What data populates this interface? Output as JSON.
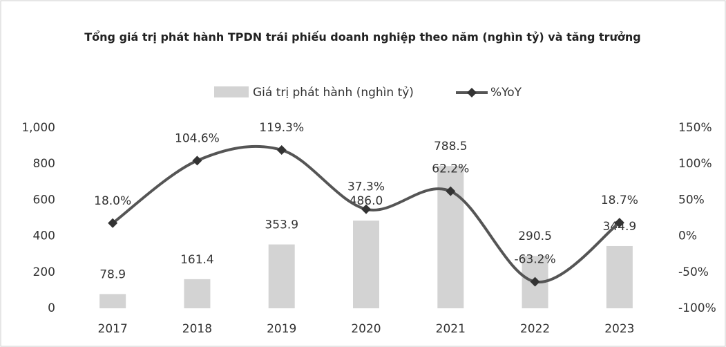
{
  "chart_data": {
    "type": "bar_line",
    "title": "Tổng giá trị phát hành TPDN trái phiếu doanh nghiệp theo năm (nghìn tỷ) và tăng trưởng",
    "categories": [
      "2017",
      "2018",
      "2019",
      "2020",
      "2021",
      "2022",
      "2023"
    ],
    "series": [
      {
        "name": "Giá trị phát hành (nghìn tỷ)",
        "color": "#d3d3d3",
        "type": "bar",
        "values": [
          78.9,
          161.4,
          353.9,
          486.0,
          788.5,
          290.5,
          344.9
        ],
        "value_labels": [
          "78.9",
          "161.4",
          "353.9",
          "486.0",
          "788.5",
          "290.5",
          "344.9"
        ]
      },
      {
        "name": "%YoY",
        "color": "#555555",
        "type": "line",
        "axis": "y2",
        "values": [
          18.0,
          104.6,
          119.3,
          37.3,
          62.2,
          -63.2,
          18.7
        ],
        "value_labels": [
          "18.0%",
          "104.6%",
          "119.3%",
          "37.3%",
          "62.2%",
          "-63.2%",
          "18.7%"
        ]
      }
    ],
    "ylim": [
      0,
      1000
    ],
    "yticks": [
      0,
      200,
      400,
      600,
      800,
      {
        "value": 1000,
        "label": "1,000"
      }
    ],
    "y2lim": [
      -100,
      150
    ],
    "y2ticks": [
      {
        "value": -100,
        "label": "-100%"
      },
      {
        "value": -50,
        "label": "-50%"
      },
      {
        "value": 0,
        "label": "0%"
      },
      {
        "value": 50,
        "label": "50%"
      },
      {
        "value": 100,
        "label": "100%"
      },
      {
        "value": 150,
        "label": "150%"
      }
    ],
    "legend": "top"
  }
}
